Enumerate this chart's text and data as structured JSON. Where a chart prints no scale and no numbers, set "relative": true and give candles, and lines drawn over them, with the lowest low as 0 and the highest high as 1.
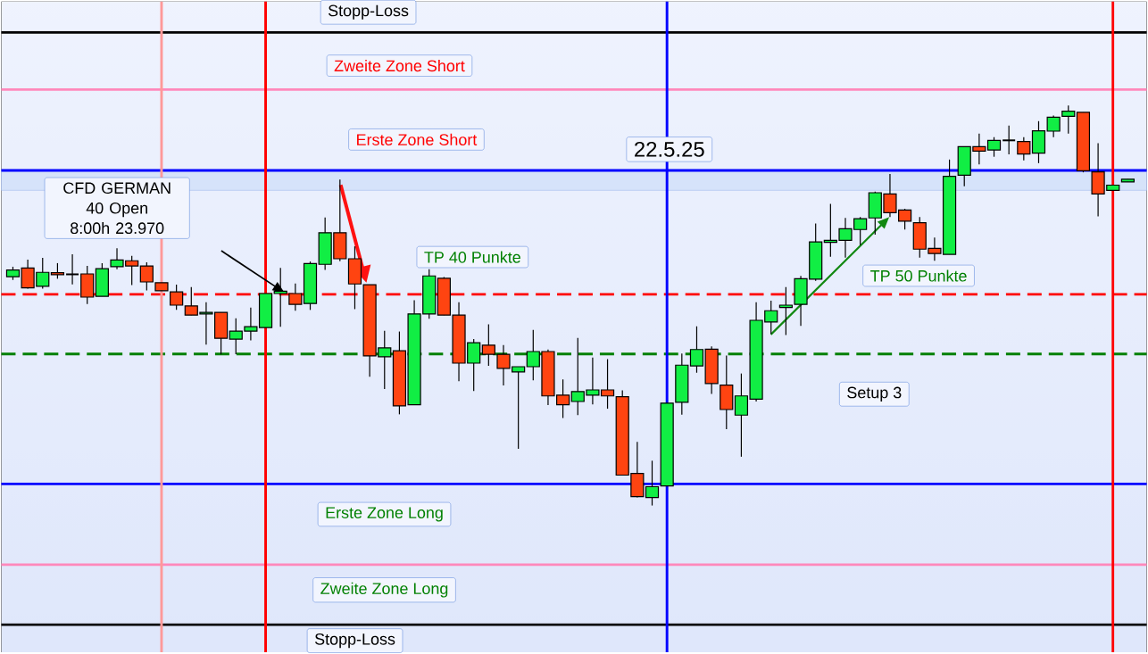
{
  "chart_data": {
    "type": "candlestick",
    "relative": true,
    "categories": [
      null,
      null,
      null,
      null,
      null,
      null,
      null,
      null,
      null,
      null,
      null,
      null,
      null,
      null,
      null,
      null,
      null,
      null,
      null,
      null,
      null,
      null,
      null,
      null,
      null,
      null,
      null,
      null,
      null,
      null,
      null,
      null,
      null,
      null,
      null,
      null,
      null,
      null,
      null,
      null,
      null,
      null,
      null,
      null,
      null,
      null,
      null,
      null,
      null,
      null,
      null,
      null,
      null,
      null,
      null,
      null,
      null,
      null,
      null,
      null,
      null,
      null,
      null,
      null,
      null,
      null,
      null,
      null,
      null,
      null,
      null,
      null,
      null,
      null,
      null,
      null
    ],
    "ohlc": [
      [
        0.572,
        0.597,
        0.564,
        0.589
      ],
      [
        0.594,
        0.615,
        0.542,
        0.544
      ],
      [
        0.548,
        0.619,
        0.542,
        0.583
      ],
      [
        0.582,
        0.606,
        0.567,
        0.577
      ],
      [
        0.578,
        0.628,
        0.553,
        0.578
      ],
      [
        0.579,
        0.599,
        0.504,
        0.521
      ],
      [
        0.523,
        0.606,
        0.523,
        0.592
      ],
      [
        0.597,
        0.643,
        0.591,
        0.614
      ],
      [
        0.612,
        0.624,
        0.551,
        0.599
      ],
      [
        0.599,
        0.608,
        0.538,
        0.559
      ],
      [
        0.557,
        0.557,
        0.537,
        0.537
      ],
      [
        0.534,
        0.552,
        0.489,
        0.501
      ],
      [
        0.499,
        0.546,
        0.476,
        0.476
      ],
      [
        0.479,
        0.508,
        0.402,
        0.483
      ],
      [
        0.483,
        0.483,
        0.378,
        0.418
      ],
      [
        0.416,
        0.468,
        0.378,
        0.436
      ],
      [
        0.436,
        0.495,
        0.413,
        0.447
      ],
      [
        0.445,
        0.53,
        0.445,
        0.53
      ],
      [
        0.53,
        0.594,
        0.447,
        0.536
      ],
      [
        0.53,
        0.555,
        0.487,
        0.503
      ],
      [
        0.505,
        0.61,
        0.489,
        0.605
      ],
      [
        0.603,
        0.72,
        0.589,
        0.682
      ],
      [
        0.682,
        0.815,
        0.611,
        0.617
      ],
      [
        0.617,
        0.648,
        0.491,
        0.554
      ],
      [
        0.552,
        0.552,
        0.322,
        0.374
      ],
      [
        0.372,
        0.437,
        0.291,
        0.394
      ],
      [
        0.387,
        0.435,
        0.228,
        0.249
      ],
      [
        0.252,
        0.513,
        0.252,
        0.479
      ],
      [
        0.479,
        0.591,
        0.467,
        0.574
      ],
      [
        0.568,
        0.571,
        0.476,
        0.476
      ],
      [
        0.476,
        0.508,
        0.311,
        0.356
      ],
      [
        0.356,
        0.416,
        0.286,
        0.407
      ],
      [
        0.401,
        0.453,
        0.349,
        0.378
      ],
      [
        0.378,
        0.401,
        0.3,
        0.343
      ],
      [
        0.334,
        0.347,
        0.142,
        0.347
      ],
      [
        0.347,
        0.439,
        0.313,
        0.385
      ],
      [
        0.385,
        0.39,
        0.251,
        0.274
      ],
      [
        0.276,
        0.315,
        0.219,
        0.252
      ],
      [
        0.26,
        0.419,
        0.226,
        0.285
      ],
      [
        0.276,
        0.37,
        0.253,
        0.289
      ],
      [
        0.289,
        0.366,
        0.242,
        0.274
      ],
      [
        0.272,
        0.288,
        0.076,
        0.076
      ],
      [
        0.08,
        0.159,
        0.02,
        0.022
      ],
      [
        0.02,
        0.112,
        0,
        0.047
      ],
      [
        0.049,
        0.256,
        0.049,
        0.256
      ],
      [
        0.258,
        0.38,
        0.227,
        0.351
      ],
      [
        0.349,
        0.448,
        0.332,
        0.39
      ],
      [
        0.391,
        0.398,
        0.279,
        0.305
      ],
      [
        0.301,
        0.375,
        0.191,
        0.24
      ],
      [
        0.226,
        0.33,
        0.122,
        0.274
      ],
      [
        0.266,
        0.508,
        0.26,
        0.463
      ],
      [
        0.459,
        0.512,
        0.429,
        0.487
      ],
      [
        0.495,
        0.546,
        0.426,
        0.501
      ],
      [
        0.503,
        0.574,
        0.449,
        0.567
      ],
      [
        0.566,
        0.705,
        0.562,
        0.659
      ],
      [
        0.658,
        0.754,
        0.622,
        0.663
      ],
      [
        0.663,
        0.719,
        0.62,
        0.692
      ],
      [
        0.69,
        0.721,
        0.651,
        0.717
      ],
      [
        0.719,
        0.785,
        0.677,
        0.782
      ],
      [
        0.779,
        0.829,
        0.721,
        0.732
      ],
      [
        0.739,
        0.742,
        0.69,
        0.711
      ],
      [
        0.707,
        0.721,
        0.62,
        0.641
      ],
      [
        0.643,
        0.67,
        0.612,
        0.63
      ],
      [
        0.628,
        0.865,
        0.628,
        0.823
      ],
      [
        0.826,
        0.897,
        0.798,
        0.897
      ],
      [
        0.897,
        0.93,
        0.853,
        0.886
      ],
      [
        0.889,
        0.921,
        0.872,
        0.913
      ],
      [
        0.913,
        0.95,
        0.878,
        0.913
      ],
      [
        0.91,
        0.921,
        0.863,
        0.879
      ],
      [
        0.881,
        0.961,
        0.856,
        0.937
      ],
      [
        0.936,
        0.975,
        0.921,
        0.971
      ],
      [
        0.973,
        1,
        0.93,
        0.986
      ],
      [
        0.983,
        0.983,
        0.833,
        0.837
      ],
      [
        0.834,
        0.906,
        0.723,
        0.779
      ],
      [
        0.788,
        0.801,
        0.788,
        0.801
      ],
      [
        0.809,
        0.816,
        0.809,
        0.816
      ]
    ],
    "ref_lines": [
      {
        "axis": "y",
        "value": 1.183,
        "color": "#000000",
        "line_style": "solid"
      },
      {
        "axis": "y",
        "value": 1.04,
        "color": "#ff88bb",
        "line_style": "solid"
      },
      {
        "axis": "y",
        "value": 0.838,
        "color": "#0000ff",
        "line_style": "solid"
      },
      {
        "axis": "y",
        "value": 0.528,
        "color": "#ff0000",
        "line_style": "dashed"
      },
      {
        "axis": "y",
        "value": 0.379,
        "color": "#008000",
        "line_style": "dashed"
      },
      {
        "axis": "y",
        "value": 0.054,
        "color": "#0000ff",
        "line_style": "solid"
      },
      {
        "axis": "y",
        "value": -0.148,
        "color": "#ff88bb",
        "line_style": "solid"
      },
      {
        "axis": "y",
        "value": -0.298,
        "color": "#000000",
        "line_style": "solid"
      }
    ],
    "bands": [
      {
        "axis": "y",
        "from": 0.788,
        "to": 0.838,
        "color": "#d6e3fa"
      }
    ],
    "annotations": [
      "Stopp-Loss",
      "Zweite Zone Short",
      "Erste Zone Short",
      "22.5.25",
      "CFD GERMAN 40 Open 8:00h 23.970",
      "TP 40 Punkte",
      "TP 50 Punkte",
      "Setup 3",
      "Erste Zone Long",
      "Zweite Zone Long",
      "Stopp-Loss"
    ]
  }
}
